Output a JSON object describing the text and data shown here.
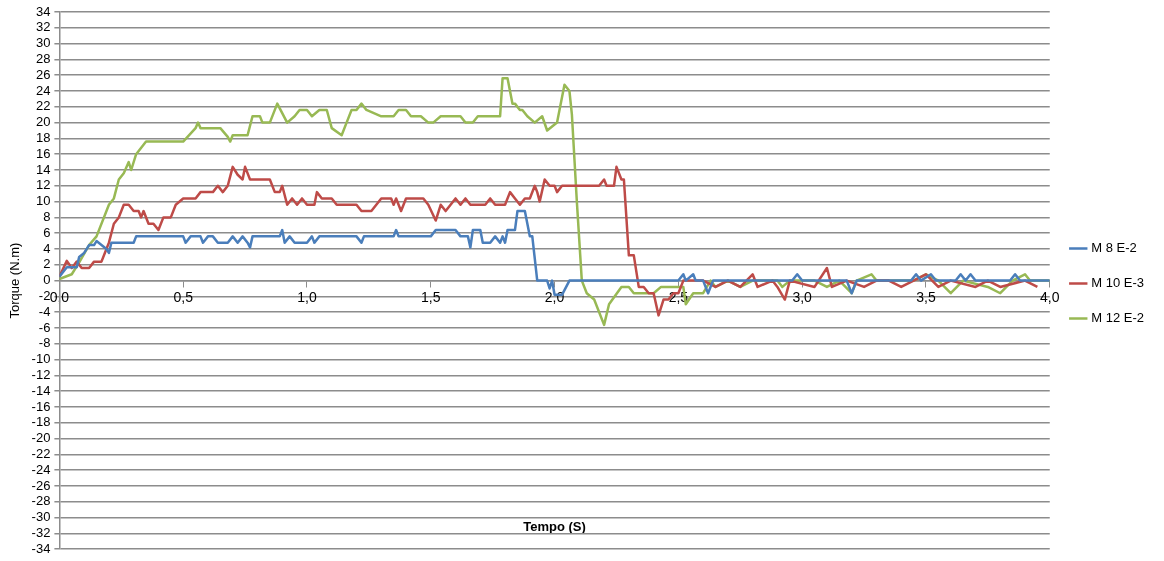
{
  "chart_data": {
    "type": "line",
    "xlabel": "Tempo (S)",
    "ylabel": "Torque (N.m)",
    "xlim": [
      0,
      4
    ],
    "xticks": [
      {
        "value": 0,
        "label": "0,0"
      },
      {
        "value": 0.5,
        "label": "0,5"
      },
      {
        "value": 1,
        "label": "1,0"
      },
      {
        "value": 1.5,
        "label": "1,5"
      },
      {
        "value": 2,
        "label": "2,0"
      },
      {
        "value": 2.5,
        "label": "2,5"
      },
      {
        "value": 3,
        "label": "3,0"
      },
      {
        "value": 3.5,
        "label": "3,5"
      },
      {
        "value": 4,
        "label": "4,0"
      }
    ],
    "ylim": [
      -34,
      34
    ],
    "yticks": [
      -34,
      -32,
      -30,
      -28,
      -26,
      -24,
      -22,
      -20,
      -18,
      -16,
      -14,
      -12,
      -10,
      -8,
      -6,
      -4,
      -2,
      0,
      2,
      4,
      6,
      8,
      10,
      12,
      14,
      16,
      18,
      20,
      22,
      24,
      26,
      28,
      30,
      32,
      34
    ],
    "grid": "y",
    "legend": "right",
    "marker": "none",
    "line_style": "solid",
    "series": [
      {
        "name": "M 8 E-2",
        "color": "#4a7ebb",
        "x": [
          0,
          0.03,
          0.07,
          0.08,
          0.1,
          0.12,
          0.14,
          0.15,
          0.17,
          0.19,
          0.2,
          0.21,
          0.3,
          0.31,
          0.5,
          0.51,
          0.53,
          0.57,
          0.58,
          0.6,
          0.62,
          0.64,
          0.68,
          0.7,
          0.72,
          0.74,
          0.76,
          0.77,
          0.78,
          0.89,
          0.9,
          0.91,
          0.93,
          0.95,
          1.0,
          1.02,
          1.03,
          1.05,
          1.2,
          1.22,
          1.23,
          1.35,
          1.36,
          1.37,
          1.5,
          1.52,
          1.6,
          1.62,
          1.65,
          1.66,
          1.67,
          1.7,
          1.71,
          1.74,
          1.76,
          1.78,
          1.79,
          1.8,
          1.81,
          1.84,
          1.85,
          1.88,
          1.9,
          1.91,
          1.93,
          1.97,
          1.98,
          1.99,
          2.0,
          2.03,
          2.06,
          2.5,
          2.52,
          2.53,
          2.56,
          2.57,
          2.6,
          2.62,
          2.64,
          2.96,
          2.98,
          3.0,
          3.18,
          3.2,
          3.22,
          3.44,
          3.46,
          3.48,
          3.52,
          3.54,
          3.62,
          3.64,
          3.66,
          3.68,
          3.7,
          3.84,
          3.86,
          3.88,
          4.0
        ],
        "values": [
          0.5,
          1.7,
          1.7,
          3,
          3.5,
          4.5,
          4.5,
          5,
          4.5,
          4,
          3.5,
          4.8,
          4.8,
          5.6,
          5.6,
          4.8,
          5.6,
          5.6,
          4.8,
          5.6,
          5.6,
          4.8,
          4.8,
          5.6,
          4.8,
          5.6,
          4.8,
          4.2,
          5.6,
          5.6,
          6.4,
          4.8,
          5.6,
          4.8,
          4.8,
          5.6,
          4.8,
          5.6,
          5.6,
          4.8,
          5.6,
          5.6,
          6.4,
          5.6,
          5.6,
          6.4,
          6.4,
          5.6,
          5.6,
          4.2,
          6.4,
          6.4,
          4.8,
          4.8,
          5.6,
          4.8,
          5.6,
          4.8,
          6.4,
          6.4,
          8.8,
          8.8,
          5.6,
          5.6,
          0,
          0,
          -1,
          0,
          -1.8,
          -1.8,
          0,
          0,
          0.8,
          0,
          0.8,
          0,
          0,
          -1.6,
          0,
          0,
          0.8,
          0,
          0,
          -1.6,
          0,
          0,
          0.8,
          0,
          0.8,
          0,
          0,
          0.8,
          0,
          0.8,
          0,
          0,
          0.8,
          0,
          0
        ]
      },
      {
        "name": "M 10 E-3",
        "color": "#be4b48",
        "x": [
          0,
          0.03,
          0.05,
          0.07,
          0.09,
          0.12,
          0.14,
          0.17,
          0.19,
          0.2,
          0.22,
          0.24,
          0.26,
          0.28,
          0.3,
          0.32,
          0.33,
          0.34,
          0.36,
          0.38,
          0.4,
          0.42,
          0.45,
          0.47,
          0.5,
          0.55,
          0.57,
          0.62,
          0.64,
          0.66,
          0.68,
          0.7,
          0.72,
          0.74,
          0.75,
          0.77,
          0.85,
          0.87,
          0.89,
          0.9,
          0.92,
          0.94,
          0.96,
          0.98,
          1.0,
          1.03,
          1.04,
          1.06,
          1.1,
          1.12,
          1.2,
          1.22,
          1.26,
          1.28,
          1.3,
          1.34,
          1.35,
          1.36,
          1.38,
          1.4,
          1.47,
          1.49,
          1.52,
          1.54,
          1.56,
          1.58,
          1.6,
          1.62,
          1.64,
          1.66,
          1.72,
          1.74,
          1.76,
          1.8,
          1.82,
          1.84,
          1.86,
          1.88,
          1.9,
          1.92,
          1.93,
          1.94,
          1.96,
          1.98,
          2.0,
          2.01,
          2.03,
          2.18,
          2.2,
          2.21,
          2.24,
          2.25,
          2.27,
          2.28,
          2.3,
          2.32,
          2.34,
          2.36,
          2.38,
          2.4,
          2.42,
          2.44,
          2.46,
          2.48,
          2.5,
          2.52,
          2.6,
          2.65,
          2.7,
          2.75,
          2.8,
          2.82,
          2.88,
          2.9,
          2.93,
          2.95,
          3.05,
          3.1,
          3.12,
          3.18,
          3.25,
          3.3,
          3.35,
          3.4,
          3.5,
          3.55,
          3.6,
          3.7,
          3.75,
          3.8,
          3.9,
          3.95
        ],
        "values": [
          0.5,
          2.5,
          1.6,
          2.4,
          1.6,
          1.6,
          2.4,
          2.4,
          4,
          4.8,
          7.2,
          8,
          9.6,
          9.6,
          8.8,
          8.8,
          8,
          8.8,
          7.2,
          7.2,
          6.4,
          8,
          8,
          9.6,
          10.4,
          10.4,
          11.2,
          11.2,
          12,
          11.2,
          12,
          14.4,
          13.4,
          12.8,
          14.4,
          12.8,
          12.8,
          11.2,
          11.2,
          12,
          9.6,
          10.4,
          9.6,
          10.4,
          9.6,
          9.6,
          11.2,
          10.4,
          10.4,
          9.6,
          9.6,
          8.8,
          8.8,
          9.6,
          10.4,
          10.4,
          9.6,
          10.4,
          8.8,
          10.4,
          10.4,
          9.6,
          7.6,
          9.6,
          8.8,
          9.6,
          10.4,
          9.6,
          10.4,
          9.6,
          9.6,
          10.4,
          9.6,
          9.6,
          11.2,
          10.4,
          9.6,
          10.4,
          10.4,
          12,
          11.2,
          10,
          12.8,
          12,
          12,
          11.2,
          12,
          12,
          12.8,
          12,
          12,
          14.4,
          12.8,
          12.8,
          3.2,
          3.2,
          -0.8,
          -0.8,
          -1.6,
          -1.6,
          -4.4,
          -2.4,
          -2.4,
          -1.6,
          -1.6,
          0,
          0,
          -0.8,
          0,
          -0.8,
          0.8,
          -0.8,
          0,
          -0.8,
          -2.4,
          0,
          -0.8,
          1.6,
          -0.8,
          0,
          -0.8,
          0,
          0,
          -0.8,
          0.8,
          -0.8,
          0,
          -0.8,
          0,
          -0.8,
          0,
          -0.8
        ]
      },
      {
        "name": "M 12 E-2",
        "color": "#98b954",
        "x": [
          0,
          0.05,
          0.08,
          0.12,
          0.15,
          0.2,
          0.22,
          0.24,
          0.26,
          0.28,
          0.29,
          0.31,
          0.35,
          0.5,
          0.55,
          0.56,
          0.57,
          0.65,
          0.68,
          0.69,
          0.7,
          0.76,
          0.78,
          0.81,
          0.82,
          0.85,
          0.88,
          0.92,
          0.95,
          0.97,
          1.0,
          1.02,
          1.05,
          1.08,
          1.1,
          1.14,
          1.16,
          1.18,
          1.2,
          1.22,
          1.24,
          1.3,
          1.35,
          1.37,
          1.4,
          1.42,
          1.46,
          1.49,
          1.51,
          1.54,
          1.62,
          1.64,
          1.67,
          1.69,
          1.78,
          1.79,
          1.81,
          1.82,
          1.83,
          1.84,
          1.86,
          1.87,
          1.89,
          1.92,
          1.95,
          1.97,
          2.01,
          2.04,
          2.06,
          2.07,
          2.09,
          2.11,
          2.13,
          2.16,
          2.2,
          2.22,
          2.27,
          2.3,
          2.32,
          2.4,
          2.43,
          2.47,
          2.52,
          2.53,
          2.56,
          2.6,
          2.63,
          2.65,
          2.7,
          2.75,
          2.8,
          2.9,
          2.92,
          2.95,
          3.05,
          3.1,
          3.15,
          3.2,
          3.22,
          3.28,
          3.3,
          3.45,
          3.5,
          3.55,
          3.6,
          3.65,
          3.75,
          3.8,
          3.85,
          3.9,
          3.92,
          4.0
        ],
        "values": [
          0.2,
          0.8,
          2.3,
          4.5,
          5.6,
          9.6,
          10.4,
          12.8,
          13.6,
          15,
          14,
          16,
          17.6,
          17.6,
          19.3,
          20,
          19.3,
          19.3,
          18.2,
          17.6,
          18.4,
          18.4,
          20.8,
          20.8,
          20,
          20,
          22.4,
          20,
          20.8,
          21.6,
          21.6,
          20.8,
          21.6,
          21.6,
          19.3,
          18.4,
          20,
          21.6,
          21.6,
          22.4,
          21.6,
          20.8,
          20.8,
          21.6,
          21.6,
          20.8,
          20.8,
          20,
          20,
          20.8,
          20.8,
          20,
          20,
          20.8,
          20.8,
          25.6,
          25.6,
          24,
          22.4,
          22.4,
          21.6,
          21.6,
          20.8,
          20,
          20.8,
          19,
          20,
          24.8,
          24,
          21,
          10,
          0,
          -1.6,
          -2.4,
          -5.6,
          -3,
          -0.8,
          -0.8,
          -1.6,
          -1.6,
          -0.8,
          -0.8,
          -0.8,
          -3,
          -1.6,
          -1.6,
          0,
          -0.8,
          0,
          -0.8,
          0,
          0,
          -0.8,
          0,
          0,
          -0.8,
          0,
          -1.6,
          0,
          0.8,
          0,
          0,
          0.8,
          0,
          -1.6,
          0,
          -0.8,
          -1.6,
          0,
          0.8,
          0,
          0
        ]
      }
    ]
  }
}
